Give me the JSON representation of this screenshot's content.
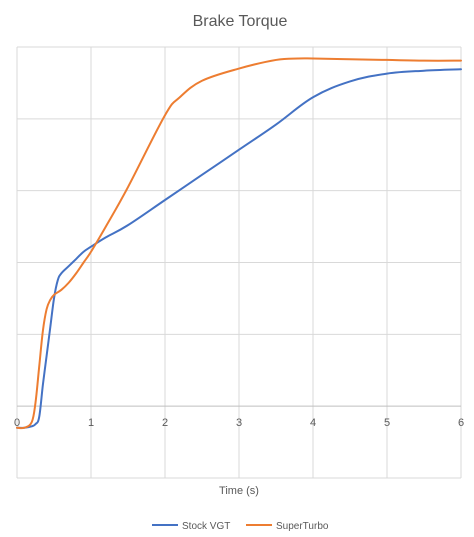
{
  "chart_data": {
    "type": "line",
    "title": "Brake Torque",
    "xlabel": "Time (s)",
    "ylabel": "",
    "xlim": [
      0,
      6
    ],
    "ylim": [
      -1,
      5
    ],
    "y_tick_count_above_zero": 5,
    "x_ticks": [
      "0",
      "1",
      "2",
      "3",
      "4",
      "5",
      "6"
    ],
    "grid": true,
    "legend_position": "bottom",
    "series": [
      {
        "name": "Stock VGT",
        "color": "#4472C4",
        "x": [
          0.0,
          0.1,
          0.2,
          0.25,
          0.3,
          0.35,
          0.4,
          0.45,
          0.5,
          0.55,
          0.6,
          0.7,
          0.8,
          0.9,
          1.0,
          1.2,
          1.5,
          2.0,
          2.5,
          3.0,
          3.5,
          4.0,
          4.5,
          5.0,
          5.5,
          6.0
        ],
        "y": [
          -0.3,
          -0.3,
          -0.28,
          -0.25,
          -0.15,
          0.3,
          0.7,
          1.1,
          1.5,
          1.75,
          1.85,
          1.95,
          2.05,
          2.15,
          2.22,
          2.35,
          2.52,
          2.87,
          3.22,
          3.57,
          3.92,
          4.3,
          4.52,
          4.63,
          4.67,
          4.69
        ]
      },
      {
        "name": "SuperTurbo",
        "color": "#ED7D31",
        "x": [
          0.0,
          0.1,
          0.2,
          0.25,
          0.3,
          0.35,
          0.4,
          0.45,
          0.5,
          0.6,
          0.7,
          0.8,
          0.9,
          1.0,
          1.2,
          1.5,
          2.0,
          2.2,
          2.5,
          3.0,
          3.5,
          3.8,
          4.0,
          4.5,
          5.0,
          5.5,
          6.0
        ],
        "y": [
          -0.3,
          -0.3,
          -0.22,
          0.05,
          0.55,
          1.05,
          1.35,
          1.48,
          1.55,
          1.62,
          1.72,
          1.85,
          2.0,
          2.15,
          2.5,
          3.05,
          4.05,
          4.3,
          4.53,
          4.7,
          4.82,
          4.84,
          4.84,
          4.83,
          4.82,
          4.81,
          4.81
        ]
      }
    ]
  }
}
